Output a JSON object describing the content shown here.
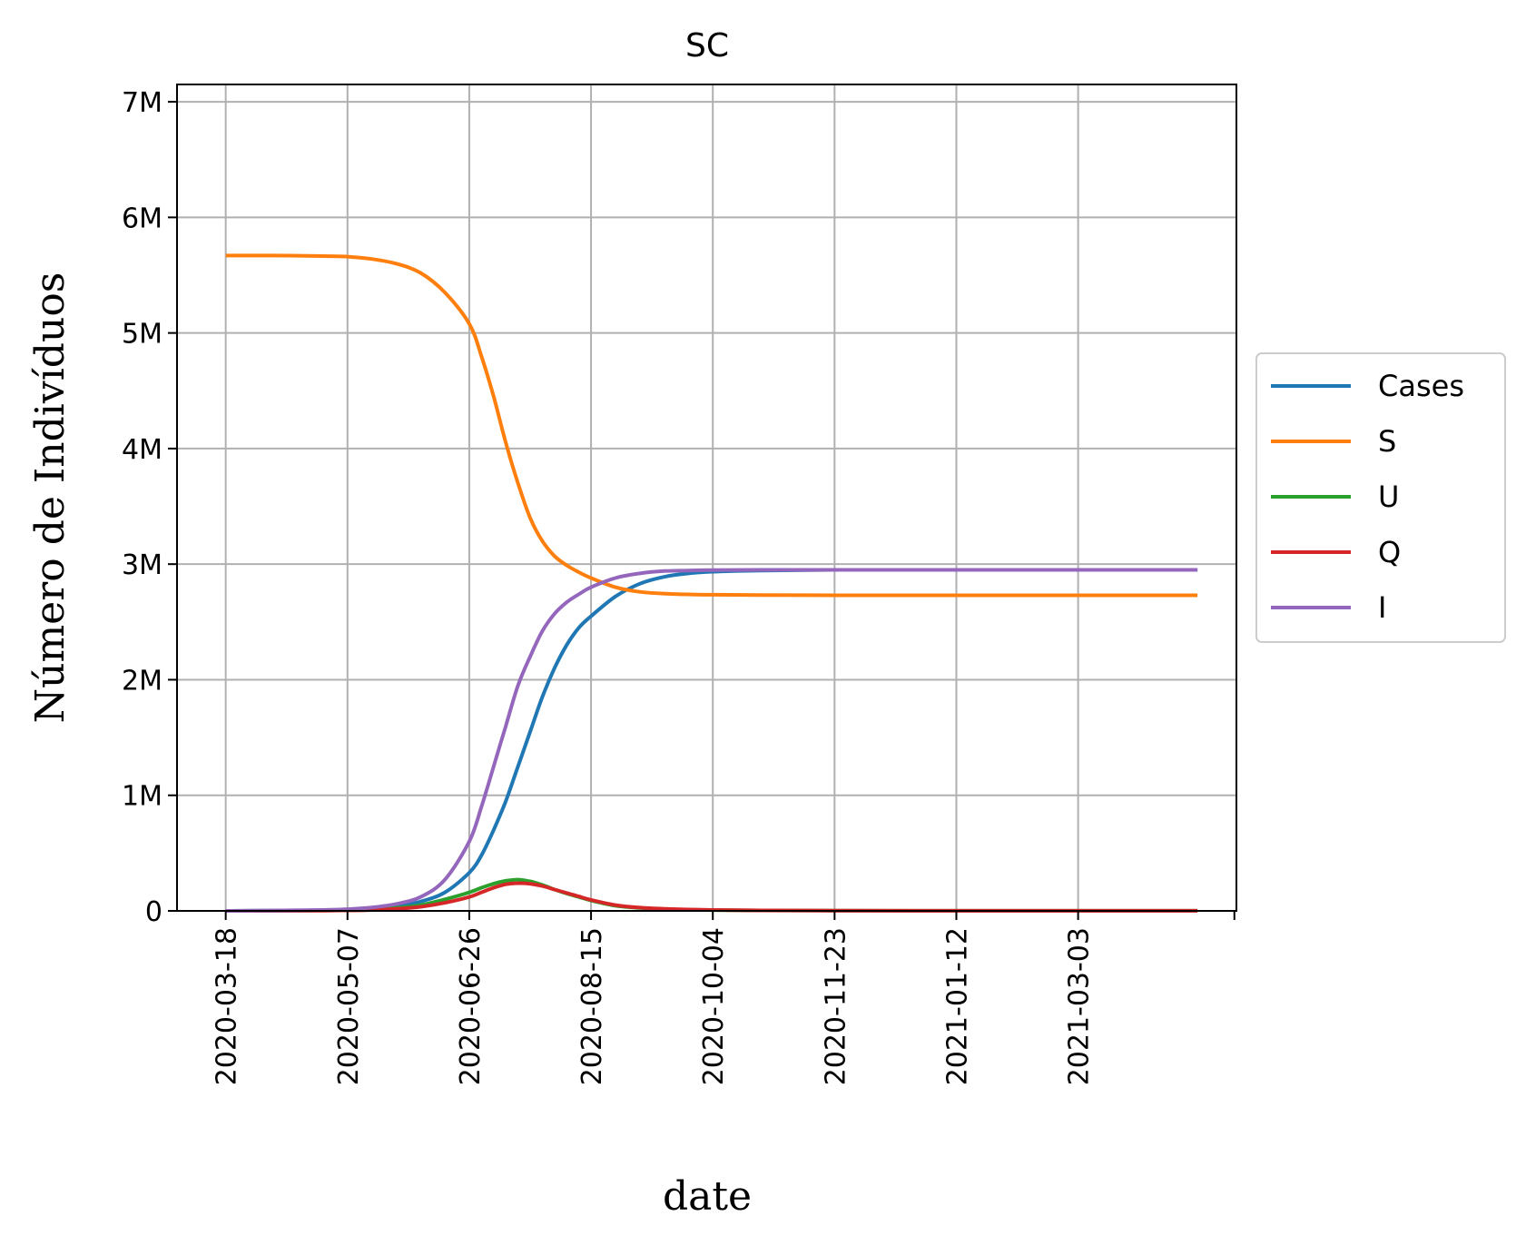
{
  "chart_data": {
    "type": "line",
    "title": "SC",
    "xlabel": "date",
    "ylabel": "Número de Indivíduos",
    "x_range": [
      "2020-03-18",
      "2021-04-21"
    ],
    "xlim": [
      "2020-02-27",
      "2021-05-07"
    ],
    "ylim": [
      0,
      7150000
    ],
    "x_ticks": [
      "2020-03-18",
      "2020-05-07",
      "2020-06-26",
      "2020-08-15",
      "2020-10-04",
      "2020-11-23",
      "2021-01-12",
      "2021-03-03"
    ],
    "y_ticks": [
      {
        "value": 0,
        "label": "0"
      },
      {
        "value": 1000000,
        "label": "1M"
      },
      {
        "value": 2000000,
        "label": "2M"
      },
      {
        "value": 3000000,
        "label": "3M"
      },
      {
        "value": 4000000,
        "label": "4M"
      },
      {
        "value": 5000000,
        "label": "5M"
      },
      {
        "value": 6000000,
        "label": "6M"
      },
      {
        "value": 7000000,
        "label": "7M"
      }
    ],
    "grid": true,
    "legend_position": "outside-right",
    "x": [
      "2020-03-18",
      "2020-04-07",
      "2020-04-27",
      "2020-05-07",
      "2020-05-17",
      "2020-05-27",
      "2020-06-06",
      "2020-06-16",
      "2020-06-26",
      "2020-07-01",
      "2020-07-06",
      "2020-07-11",
      "2020-07-16",
      "2020-07-21",
      "2020-07-26",
      "2020-07-31",
      "2020-08-05",
      "2020-08-10",
      "2020-08-15",
      "2020-08-25",
      "2020-09-04",
      "2020-09-14",
      "2020-09-24",
      "2020-10-04",
      "2020-10-24",
      "2020-11-23",
      "2021-01-12",
      "2021-03-03",
      "2021-04-21"
    ],
    "series": [
      {
        "name": "Cases",
        "color": "#1f77b4",
        "values": [
          0,
          2000,
          5000,
          10000,
          20000,
          40000,
          80000,
          160000,
          330000,
          480000,
          700000,
          950000,
          1250000,
          1550000,
          1850000,
          2100000,
          2300000,
          2450000,
          2550000,
          2720000,
          2830000,
          2890000,
          2920000,
          2935000,
          2945000,
          2950000,
          2950000,
          2950000,
          2950000
        ]
      },
      {
        "name": "S",
        "color": "#ff7f0e",
        "values": [
          5670000,
          5670000,
          5665000,
          5660000,
          5640000,
          5600000,
          5520000,
          5350000,
          5080000,
          4800000,
          4450000,
          4050000,
          3700000,
          3400000,
          3200000,
          3070000,
          2990000,
          2930000,
          2880000,
          2800000,
          2760000,
          2745000,
          2738000,
          2735000,
          2732000,
          2730000,
          2730000,
          2730000,
          2730000
        ]
      },
      {
        "name": "U",
        "color": "#2ca02c",
        "values": [
          0,
          1000,
          3000,
          5000,
          10000,
          25000,
          50000,
          100000,
          160000,
          200000,
          235000,
          260000,
          270000,
          255000,
          225000,
          185000,
          150000,
          120000,
          90000,
          45000,
          25000,
          15000,
          10000,
          7000,
          4000,
          2000,
          1000,
          500,
          500
        ]
      },
      {
        "name": "Q",
        "color": "#d62728",
        "values": [
          0,
          500,
          2000,
          4000,
          8000,
          18000,
          35000,
          70000,
          120000,
          160000,
          200000,
          230000,
          240000,
          235000,
          215000,
          185000,
          155000,
          125000,
          95000,
          50000,
          28000,
          18000,
          12000,
          8000,
          4000,
          2000,
          1000,
          500,
          500
        ]
      },
      {
        "name": "I",
        "color": "#9467bd",
        "values": [
          0,
          3000,
          8000,
          15000,
          30000,
          60000,
          120000,
          270000,
          600000,
          900000,
          1250000,
          1600000,
          1950000,
          2200000,
          2420000,
          2570000,
          2670000,
          2740000,
          2800000,
          2880000,
          2920000,
          2940000,
          2945000,
          2948000,
          2950000,
          2950000,
          2950000,
          2950000,
          2950000
        ]
      }
    ]
  }
}
